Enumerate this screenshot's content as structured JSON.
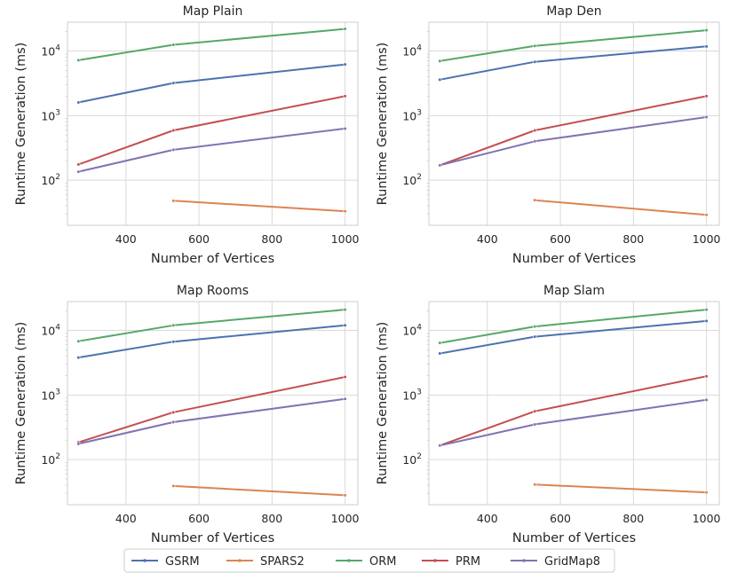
{
  "chart_data": [
    {
      "type": "line",
      "title": "Map Plain",
      "xlabel": "Number of Vertices",
      "ylabel": "Runtime Generation (ms)",
      "yscale": "log",
      "xlim": [
        240,
        1035
      ],
      "ylim": [
        20,
        28000
      ],
      "xticks": [
        400,
        600,
        800,
        1000
      ],
      "yticks": [
        100,
        1000,
        10000
      ],
      "grid": true,
      "series": [
        {
          "name": "GSRM",
          "x": [
            270,
            530,
            1000
          ],
          "values": [
            1600,
            3200,
            6200
          ]
        },
        {
          "name": "SPARS2",
          "x": [
            530,
            1000
          ],
          "values": [
            48,
            33
          ]
        },
        {
          "name": "ORM",
          "x": [
            270,
            530,
            1000
          ],
          "values": [
            7200,
            12500,
            22000
          ]
        },
        {
          "name": "PRM",
          "x": [
            270,
            530,
            1000
          ],
          "values": [
            175,
            590,
            2000
          ]
        },
        {
          "name": "GridMap8",
          "x": [
            270,
            530,
            1000
          ],
          "values": [
            135,
            295,
            630
          ]
        }
      ]
    },
    {
      "type": "line",
      "title": "Map Den",
      "xlabel": "Number of Vertices",
      "ylabel": "Runtime Generation (ms)",
      "yscale": "log",
      "xlim": [
        240,
        1035
      ],
      "ylim": [
        20,
        28000
      ],
      "xticks": [
        400,
        600,
        800,
        1000
      ],
      "yticks": [
        100,
        1000,
        10000
      ],
      "grid": true,
      "series": [
        {
          "name": "GSRM",
          "x": [
            270,
            530,
            1000
          ],
          "values": [
            3600,
            6800,
            11800
          ]
        },
        {
          "name": "SPARS2",
          "x": [
            530,
            1000
          ],
          "values": [
            49,
            29
          ]
        },
        {
          "name": "ORM",
          "x": [
            270,
            530,
            1000
          ],
          "values": [
            7000,
            12000,
            21000
          ]
        },
        {
          "name": "PRM",
          "x": [
            270,
            530,
            1000
          ],
          "values": [
            170,
            590,
            2000
          ]
        },
        {
          "name": "GridMap8",
          "x": [
            270,
            530,
            1000
          ],
          "values": [
            170,
            400,
            950
          ]
        }
      ]
    },
    {
      "type": "line",
      "title": "Map Rooms",
      "xlabel": "Number of Vertices",
      "ylabel": "Runtime Generation (ms)",
      "yscale": "log",
      "xlim": [
        240,
        1035
      ],
      "ylim": [
        20,
        28000
      ],
      "xticks": [
        400,
        600,
        800,
        1000
      ],
      "yticks": [
        100,
        1000,
        10000
      ],
      "grid": true,
      "series": [
        {
          "name": "GSRM",
          "x": [
            270,
            530,
            1000
          ],
          "values": [
            3800,
            6700,
            12000
          ]
        },
        {
          "name": "SPARS2",
          "x": [
            530,
            1000
          ],
          "values": [
            39,
            28
          ]
        },
        {
          "name": "ORM",
          "x": [
            270,
            530,
            1000
          ],
          "values": [
            6800,
            12000,
            21000
          ]
        },
        {
          "name": "PRM",
          "x": [
            270,
            530,
            1000
          ],
          "values": [
            185,
            540,
            1900
          ]
        },
        {
          "name": "GridMap8",
          "x": [
            270,
            530,
            1000
          ],
          "values": [
            175,
            380,
            870
          ]
        }
      ]
    },
    {
      "type": "line",
      "title": "Map Slam",
      "xlabel": "Number of Vertices",
      "ylabel": "Runtime Generation (ms)",
      "yscale": "log",
      "xlim": [
        240,
        1035
      ],
      "ylim": [
        20,
        28000
      ],
      "xticks": [
        400,
        600,
        800,
        1000
      ],
      "yticks": [
        100,
        1000,
        10000
      ],
      "grid": true,
      "series": [
        {
          "name": "GSRM",
          "x": [
            270,
            530,
            1000
          ],
          "values": [
            4400,
            8000,
            14000
          ]
        },
        {
          "name": "SPARS2",
          "x": [
            530,
            1000
          ],
          "values": [
            41,
            31
          ]
        },
        {
          "name": "ORM",
          "x": [
            270,
            530,
            1000
          ],
          "values": [
            6400,
            11500,
            21000
          ]
        },
        {
          "name": "PRM",
          "x": [
            270,
            530,
            1000
          ],
          "values": [
            165,
            560,
            1950
          ]
        },
        {
          "name": "GridMap8",
          "x": [
            270,
            530,
            1000
          ],
          "values": [
            165,
            350,
            840
          ]
        }
      ]
    }
  ],
  "legend": {
    "placement": "bottom-center",
    "entries": [
      "GSRM",
      "SPARS2",
      "ORM",
      "PRM",
      "GridMap8"
    ]
  },
  "colors": {
    "GSRM": "#4c72b0",
    "SPARS2": "#dd8452",
    "ORM": "#55a868",
    "PRM": "#c44e52",
    "GridMap8": "#8172b3"
  }
}
